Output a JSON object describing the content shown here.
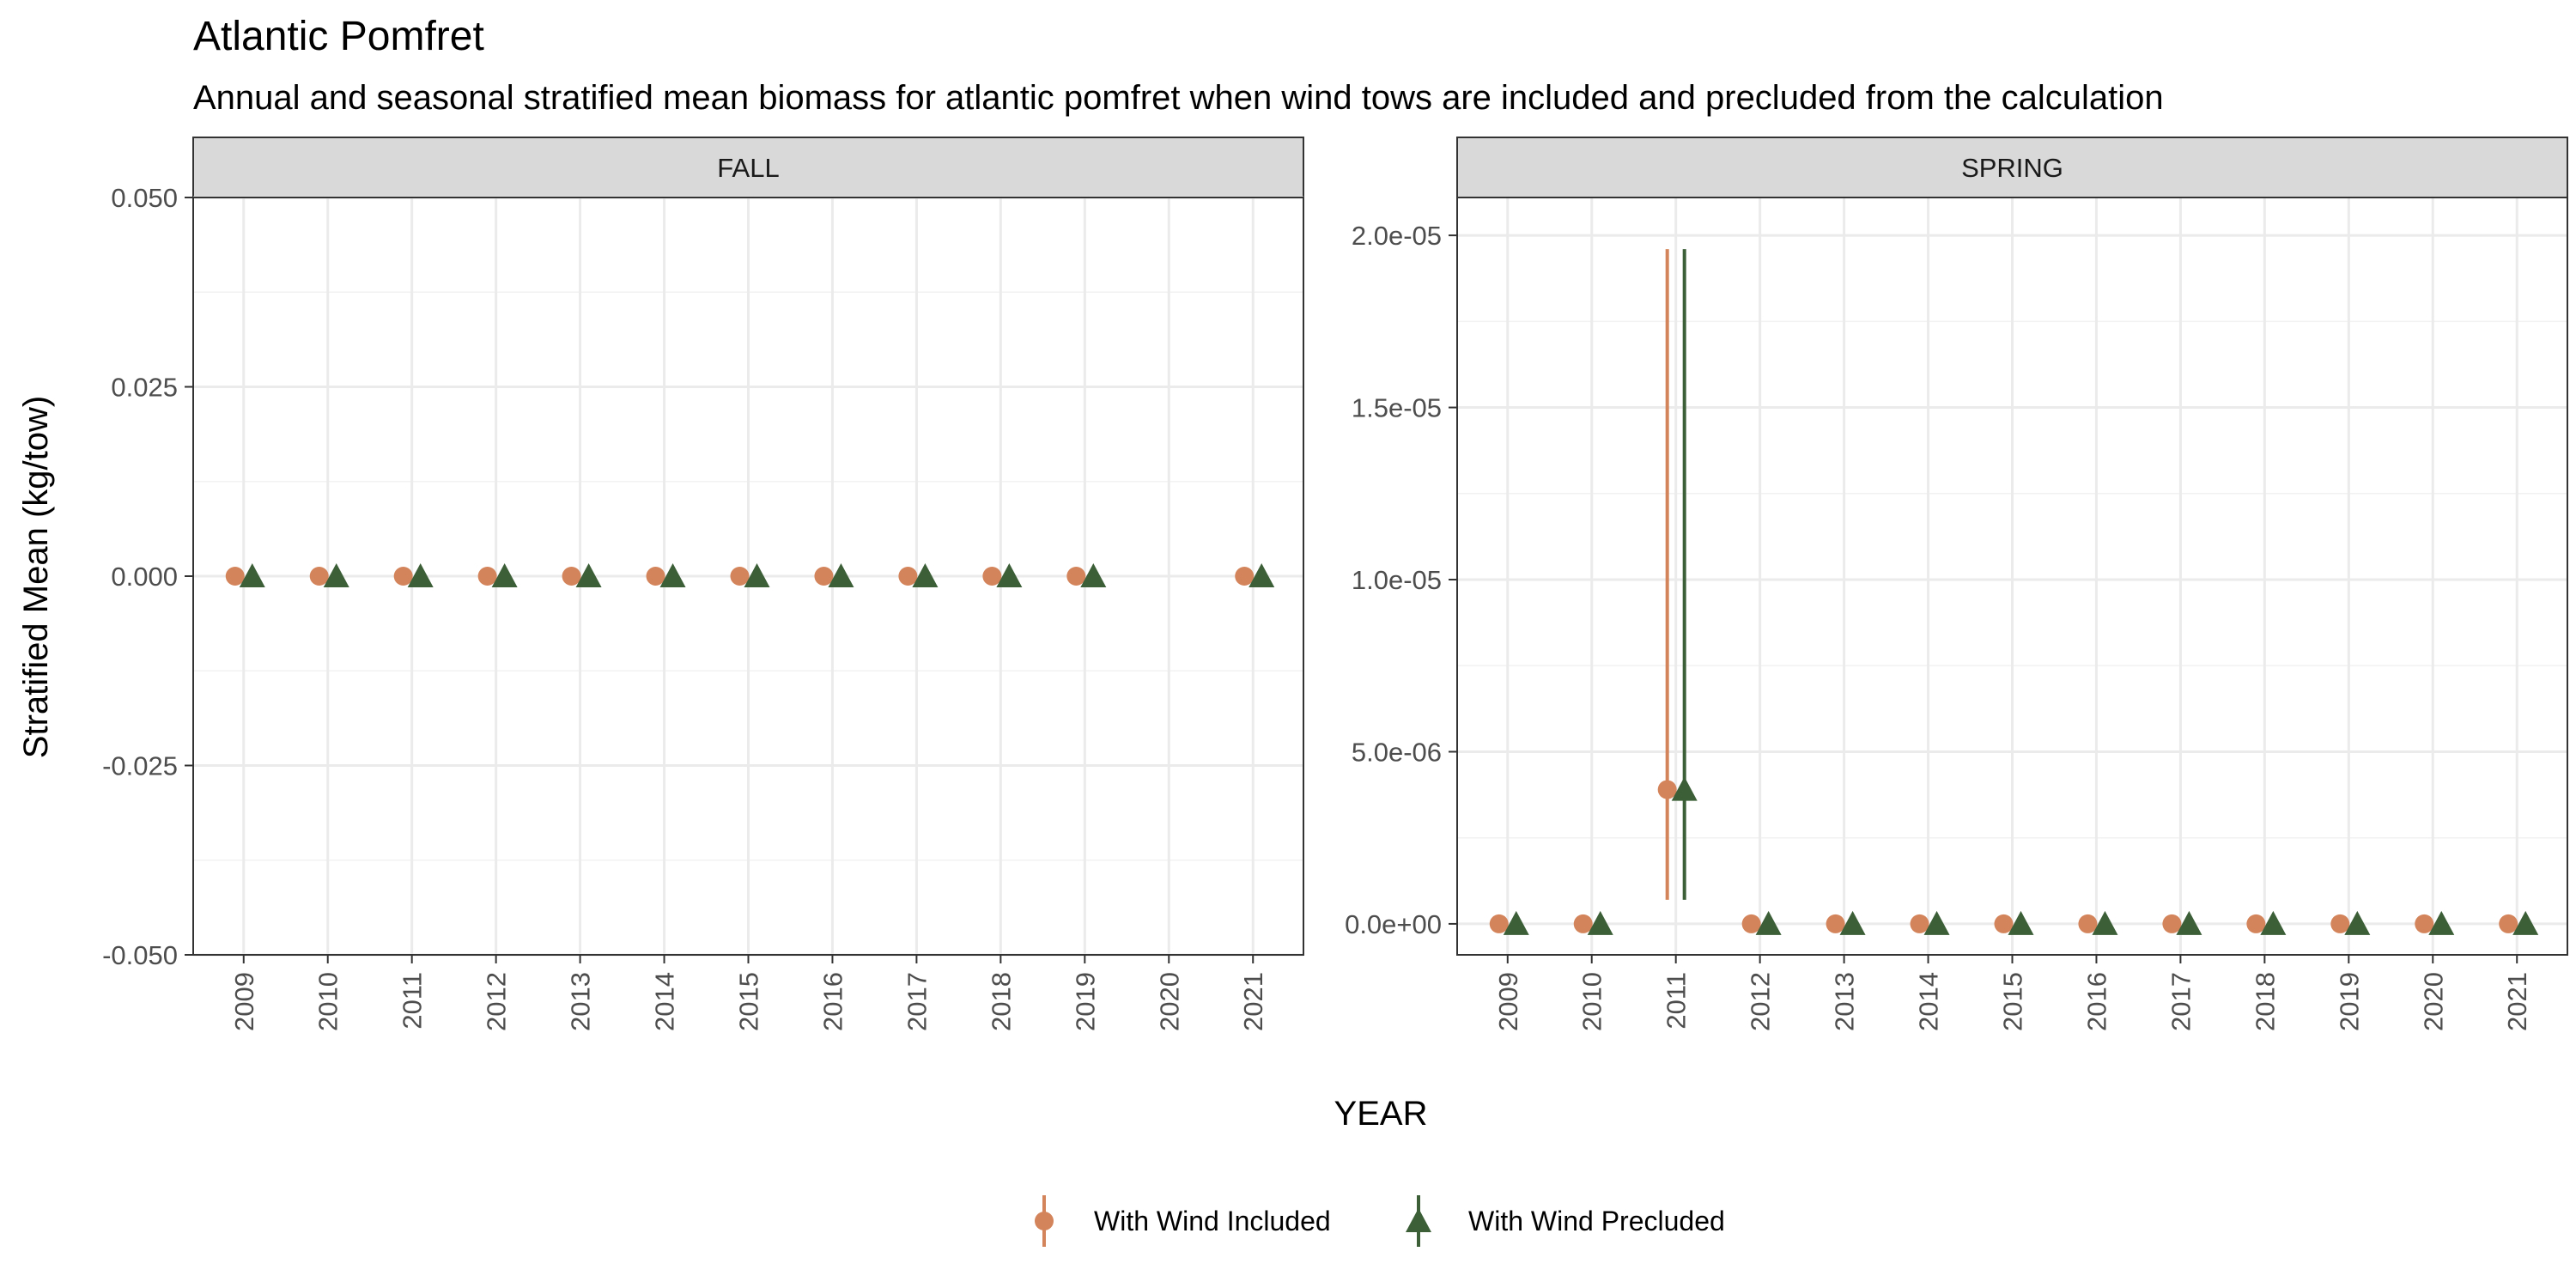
{
  "title": "Atlantic Pomfret",
  "subtitle": "Annual and seasonal stratified mean biomass for atlantic pomfret when wind tows are included and precluded from the calculation",
  "xlabel": "YEAR",
  "ylabel": "Stratified Mean (kg/tow)",
  "colors": {
    "included": "#D4845A",
    "precluded": "#3C5F38"
  },
  "legend": {
    "position": "bottom",
    "items": [
      {
        "key": "included",
        "label": "With Wind Included",
        "shape": "circle"
      },
      {
        "key": "precluded",
        "label": "With Wind Precluded",
        "shape": "triangle"
      }
    ]
  },
  "chart_data": [
    {
      "type": "scatter",
      "panel": "FALL",
      "ylim": [
        -0.05,
        0.05
      ],
      "yticks": [
        -0.05,
        -0.025,
        0,
        0.025,
        0.05
      ],
      "ytick_labels": [
        "-0.050",
        "-0.025",
        "0.000",
        "0.025",
        "0.050"
      ],
      "grid": true,
      "x": [
        2009,
        2010,
        2011,
        2012,
        2013,
        2014,
        2015,
        2016,
        2017,
        2018,
        2019,
        2020,
        2021
      ],
      "series": [
        {
          "name": "With Wind Included",
          "key": "included",
          "values": [
            0,
            0,
            0,
            0,
            0,
            0,
            0,
            0,
            0,
            0,
            0,
            null,
            0
          ],
          "lower": [
            null,
            null,
            null,
            null,
            null,
            null,
            null,
            null,
            null,
            null,
            null,
            null,
            null
          ],
          "upper": [
            null,
            null,
            null,
            null,
            null,
            null,
            null,
            null,
            null,
            null,
            null,
            null,
            null
          ]
        },
        {
          "name": "With Wind Precluded",
          "key": "precluded",
          "values": [
            0,
            0,
            0,
            0,
            0,
            0,
            0,
            0,
            0,
            0,
            0,
            null,
            0
          ],
          "lower": [
            null,
            null,
            null,
            null,
            null,
            null,
            null,
            null,
            null,
            null,
            null,
            null,
            null
          ],
          "upper": [
            null,
            null,
            null,
            null,
            null,
            null,
            null,
            null,
            null,
            null,
            null,
            null,
            null
          ]
        }
      ]
    },
    {
      "type": "scatter",
      "panel": "SPRING",
      "ylim": [
        -9e-07,
        2.11e-05
      ],
      "yticks": [
        0,
        5e-06,
        1e-05,
        1.5e-05,
        2e-05
      ],
      "ytick_labels": [
        "0.0e+00",
        "5.0e-06",
        "1.0e-05",
        "1.5e-05",
        "2.0e-05"
      ],
      "grid": true,
      "x": [
        2009,
        2010,
        2011,
        2012,
        2013,
        2014,
        2015,
        2016,
        2017,
        2018,
        2019,
        2020,
        2021
      ],
      "series": [
        {
          "name": "With Wind Included",
          "key": "included",
          "values": [
            0,
            0,
            3.9e-06,
            0,
            0,
            0,
            0,
            0,
            0,
            0,
            0,
            0,
            0
          ],
          "lower": [
            null,
            null,
            7e-07,
            null,
            null,
            null,
            null,
            null,
            null,
            null,
            null,
            null,
            null
          ],
          "upper": [
            null,
            null,
            1.96e-05,
            null,
            null,
            null,
            null,
            null,
            null,
            null,
            null,
            null,
            null
          ]
        },
        {
          "name": "With Wind Precluded",
          "key": "precluded",
          "values": [
            0,
            0,
            3.9e-06,
            0,
            0,
            0,
            0,
            0,
            0,
            0,
            0,
            0,
            0
          ],
          "lower": [
            null,
            null,
            7e-07,
            null,
            null,
            null,
            null,
            null,
            null,
            null,
            null,
            null,
            null
          ],
          "upper": [
            null,
            null,
            1.96e-05,
            null,
            null,
            null,
            null,
            null,
            null,
            null,
            null,
            null,
            null
          ]
        }
      ]
    }
  ]
}
